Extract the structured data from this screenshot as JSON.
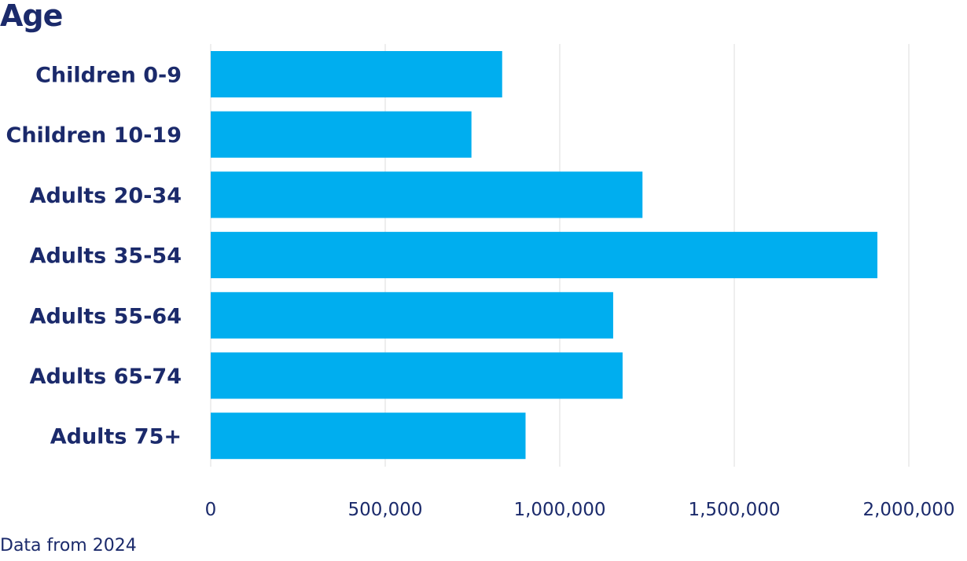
{
  "chart_data": {
    "type": "bar",
    "orientation": "horizontal",
    "title": "Age",
    "categories": [
      "Children 0-9",
      "Children 10-19",
      "Adults 20-34",
      "Adults 35-54",
      "Adults 55-64",
      "Adults 65-74",
      "Adults 75+"
    ],
    "values": [
      835000,
      747000,
      1237000,
      1910000,
      1153000,
      1180000,
      902000
    ],
    "xlim": [
      0,
      2000000
    ],
    "x_ticks": [
      "0",
      "500,000",
      "1,000,000",
      "1,500,000",
      "2,000,000"
    ],
    "xlabel": "",
    "ylabel": "",
    "grid": "vertical",
    "bar_color": "#00aeef",
    "grid_color": "#e3e3e3",
    "text_color": "#1b2a6b"
  },
  "source_note": "Data from 2024"
}
